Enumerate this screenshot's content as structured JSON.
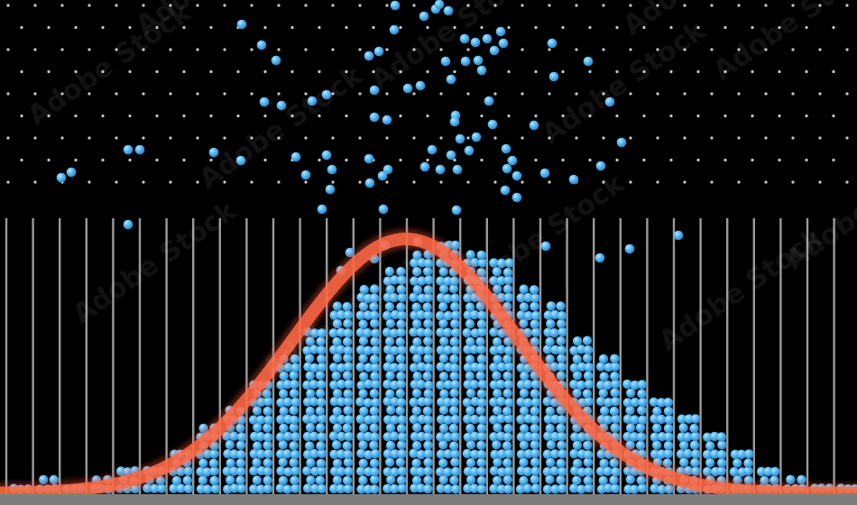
{
  "scene": {
    "description_type": "galton-board",
    "background_color": "#000000",
    "peg_color": "#c8c8c8",
    "divider_color": "#9a9a9a",
    "floor_color": "#8a8a8a",
    "ball_color": "#4fb3ef",
    "ball_highlight_color": "#a8dcff",
    "curve_color": "#ff5a3a",
    "curve_core_color": "#ff6a45",
    "bins_count": 32,
    "bin_fill_levels": [
      0.05,
      0.06,
      0.05,
      0.08,
      0.1,
      0.12,
      0.18,
      0.27,
      0.35,
      0.45,
      0.55,
      0.64,
      0.75,
      0.82,
      0.9,
      0.95,
      0.98,
      0.97,
      0.93,
      0.84,
      0.74,
      0.63,
      0.54,
      0.46,
      0.39,
      0.31,
      0.23,
      0.16,
      0.1,
      0.07,
      0.05,
      0.04
    ]
  },
  "watermark": {
    "text": "Adobe Stock"
  }
}
